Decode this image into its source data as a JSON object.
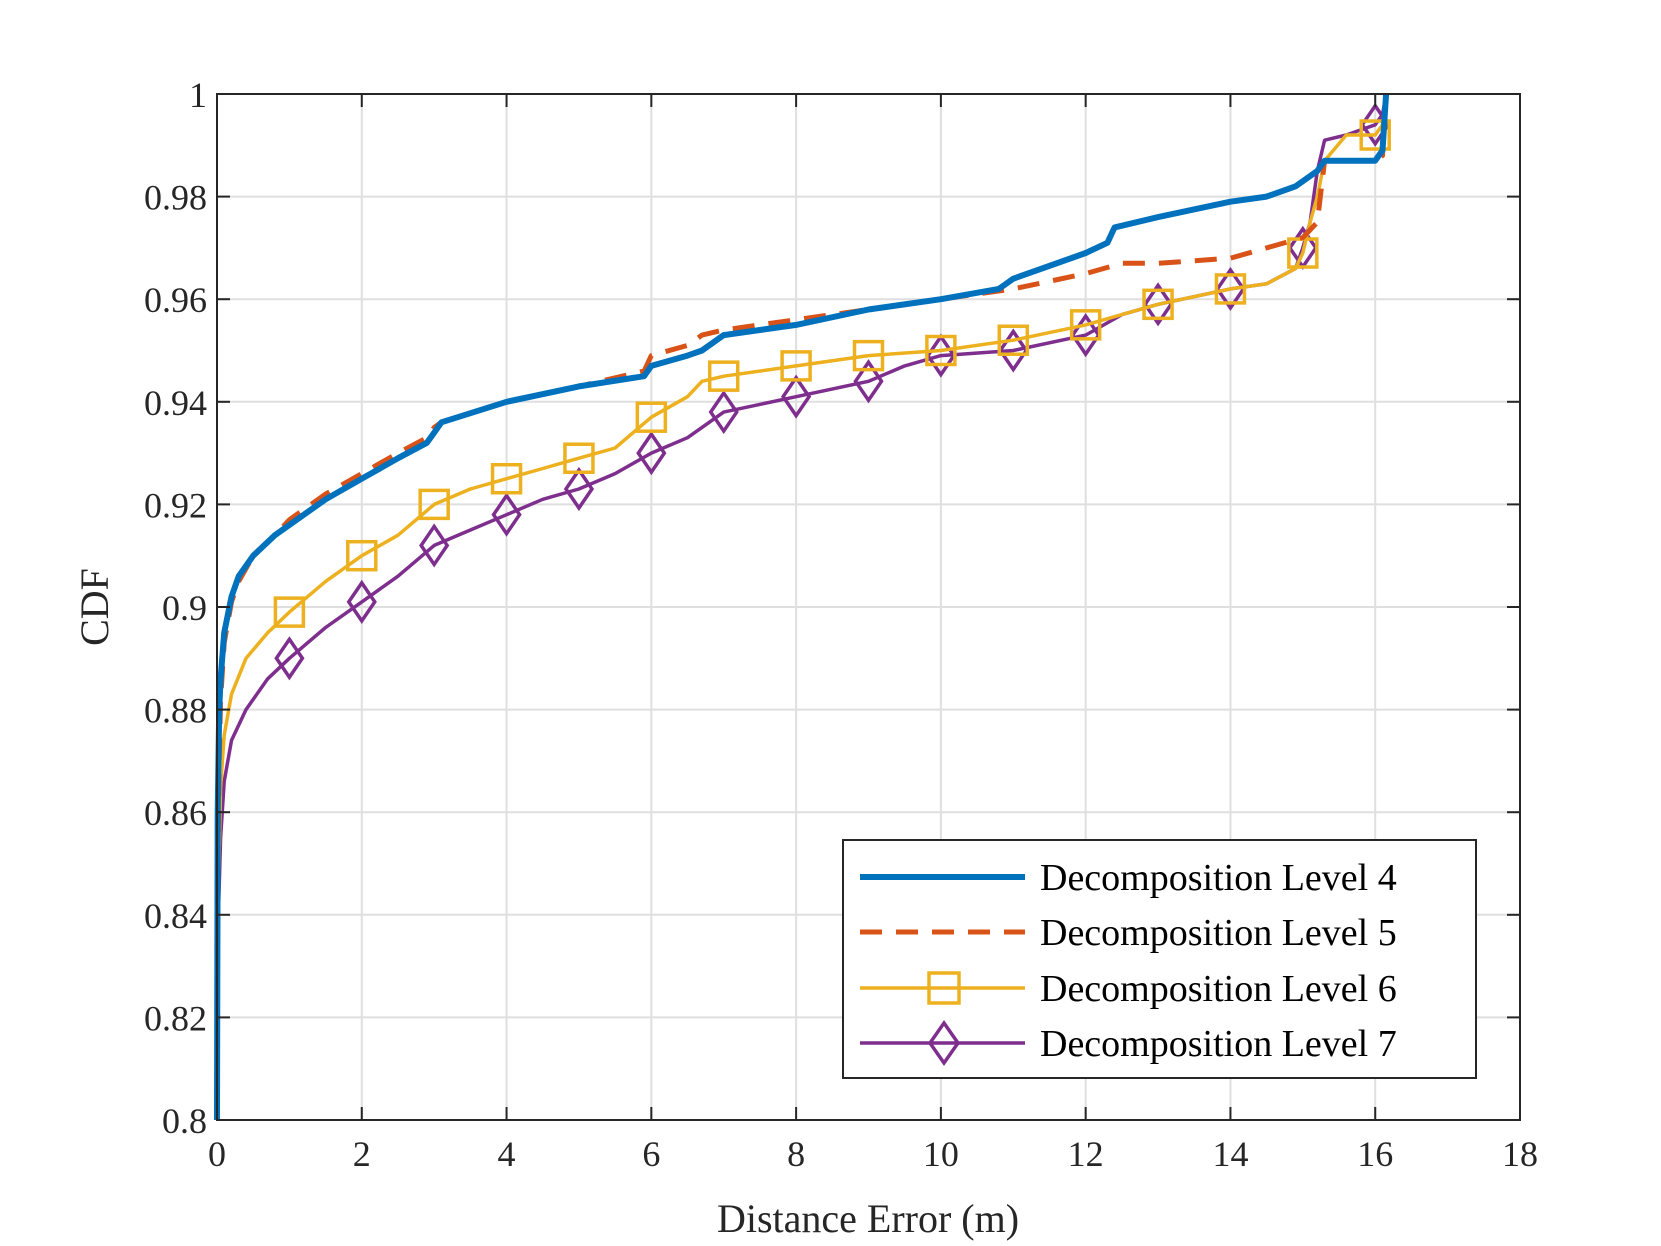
{
  "chart_data": {
    "type": "line",
    "title": "",
    "xlabel": "Distance Error (m)",
    "ylabel": "CDF",
    "xlim": [
      0,
      18
    ],
    "ylim": [
      0.8,
      1.0
    ],
    "xticks": [
      0,
      2,
      4,
      6,
      8,
      10,
      12,
      14,
      16,
      18
    ],
    "xtick_labels": [
      "0",
      "2",
      "4",
      "6",
      "8",
      "10",
      "12",
      "14",
      "16",
      "18"
    ],
    "yticks": [
      0.8,
      0.82,
      0.84,
      0.86,
      0.88,
      0.9,
      0.92,
      0.94,
      0.96,
      0.98,
      1.0
    ],
    "ytick_labels": [
      "0.8",
      "0.82",
      "0.84",
      "0.86",
      "0.88",
      "0.9",
      "0.92",
      "0.94",
      "0.96",
      "0.98",
      "1"
    ],
    "grid": true,
    "legend_position": "bottom-right",
    "series": [
      {
        "name": "Decomposition Level 4",
        "color": "#0072BD",
        "style": "solid",
        "marker": "none",
        "x": [
          0,
          0.01,
          0.03,
          0.05,
          0.1,
          0.2,
          0.3,
          0.5,
          0.8,
          1.0,
          1.5,
          2.0,
          2.5,
          2.9,
          3.0,
          3.1,
          4.0,
          5.0,
          5.9,
          6.0,
          6.5,
          6.7,
          7.0,
          8.0,
          9.0,
          10.0,
          10.8,
          11.0,
          12.0,
          12.3,
          12.4,
          13.0,
          14.0,
          14.5,
          14.9,
          15.1,
          15.2,
          15.3,
          15.5,
          16.0,
          16.1,
          16.15
        ],
        "y": [
          0.8,
          0.86,
          0.88,
          0.886,
          0.895,
          0.902,
          0.906,
          0.91,
          0.914,
          0.916,
          0.921,
          0.925,
          0.929,
          0.932,
          0.934,
          0.936,
          0.94,
          0.943,
          0.945,
          0.947,
          0.949,
          0.95,
          0.953,
          0.955,
          0.958,
          0.96,
          0.962,
          0.964,
          0.969,
          0.971,
          0.974,
          0.976,
          0.979,
          0.98,
          0.982,
          0.984,
          0.985,
          0.987,
          0.987,
          0.987,
          0.989,
          1.0
        ]
      },
      {
        "name": "Decomposition Level 5",
        "color": "#D95319",
        "style": "dashed",
        "marker": "none",
        "x": [
          0,
          0.01,
          0.03,
          0.05,
          0.1,
          0.2,
          0.3,
          0.5,
          0.8,
          1.0,
          1.5,
          2.0,
          2.5,
          2.9,
          3.0,
          3.1,
          4.0,
          5.0,
          5.9,
          6.0,
          6.5,
          6.7,
          7.0,
          8.0,
          9.0,
          10.0,
          11.0,
          12.0,
          12.5,
          13.0,
          14.0,
          14.5,
          15.0,
          15.2,
          15.3,
          15.5,
          16.0,
          16.1,
          16.15
        ],
        "y": [
          0.8,
          0.845,
          0.87,
          0.882,
          0.893,
          0.901,
          0.905,
          0.91,
          0.914,
          0.917,
          0.922,
          0.926,
          0.93,
          0.933,
          0.935,
          0.936,
          0.94,
          0.943,
          0.946,
          0.949,
          0.951,
          0.953,
          0.954,
          0.956,
          0.958,
          0.96,
          0.962,
          0.965,
          0.967,
          0.967,
          0.968,
          0.97,
          0.972,
          0.975,
          0.987,
          0.987,
          0.987,
          0.988,
          1.0
        ]
      },
      {
        "name": "Decomposition Level 6",
        "color": "#EDB120",
        "style": "solid",
        "marker": "square",
        "x": [
          0,
          0.02,
          0.05,
          0.1,
          0.2,
          0.4,
          0.7,
          1.0,
          1.5,
          2.0,
          2.5,
          3.0,
          3.5,
          4.0,
          4.5,
          5.0,
          5.5,
          6.0,
          6.5,
          6.7,
          7.0,
          8.0,
          9.0,
          10.0,
          11.0,
          12.0,
          12.5,
          13.0,
          14.0,
          14.5,
          14.9,
          15.0,
          15.1,
          15.2,
          15.3,
          15.6,
          16.0,
          16.1,
          16.15
        ],
        "y": [
          0.8,
          0.845,
          0.865,
          0.875,
          0.883,
          0.89,
          0.895,
          0.899,
          0.905,
          0.91,
          0.914,
          0.92,
          0.923,
          0.925,
          0.927,
          0.929,
          0.931,
          0.937,
          0.941,
          0.944,
          0.945,
          0.947,
          0.949,
          0.95,
          0.952,
          0.955,
          0.957,
          0.959,
          0.962,
          0.963,
          0.966,
          0.969,
          0.975,
          0.98,
          0.987,
          0.992,
          0.992,
          0.994,
          1.0
        ]
      },
      {
        "name": "Decomposition Level 7",
        "color": "#7E2F8E",
        "style": "solid",
        "marker": "diamond",
        "x": [
          0,
          0.02,
          0.05,
          0.1,
          0.2,
          0.4,
          0.7,
          1.0,
          1.5,
          2.0,
          2.5,
          3.0,
          3.5,
          4.0,
          4.5,
          5.0,
          5.5,
          6.0,
          6.5,
          6.7,
          7.0,
          8.0,
          9.0,
          9.5,
          10.0,
          11.0,
          12.0,
          12.5,
          13.0,
          14.0,
          14.5,
          14.9,
          15.0,
          15.1,
          15.2,
          15.3,
          15.6,
          16.0,
          16.1,
          16.15
        ],
        "y": [
          0.8,
          0.84,
          0.855,
          0.866,
          0.874,
          0.88,
          0.886,
          0.89,
          0.896,
          0.901,
          0.906,
          0.912,
          0.915,
          0.918,
          0.921,
          0.923,
          0.926,
          0.93,
          0.933,
          0.935,
          0.938,
          0.941,
          0.944,
          0.947,
          0.949,
          0.95,
          0.953,
          0.957,
          0.959,
          0.962,
          0.963,
          0.966,
          0.97,
          0.975,
          0.985,
          0.991,
          0.992,
          0.994,
          0.996,
          1.0
        ]
      }
    ],
    "marker_x": [
      1,
      2,
      3,
      4,
      5,
      6,
      7,
      8,
      9,
      10,
      11,
      12,
      13,
      14,
      15,
      16
    ]
  }
}
